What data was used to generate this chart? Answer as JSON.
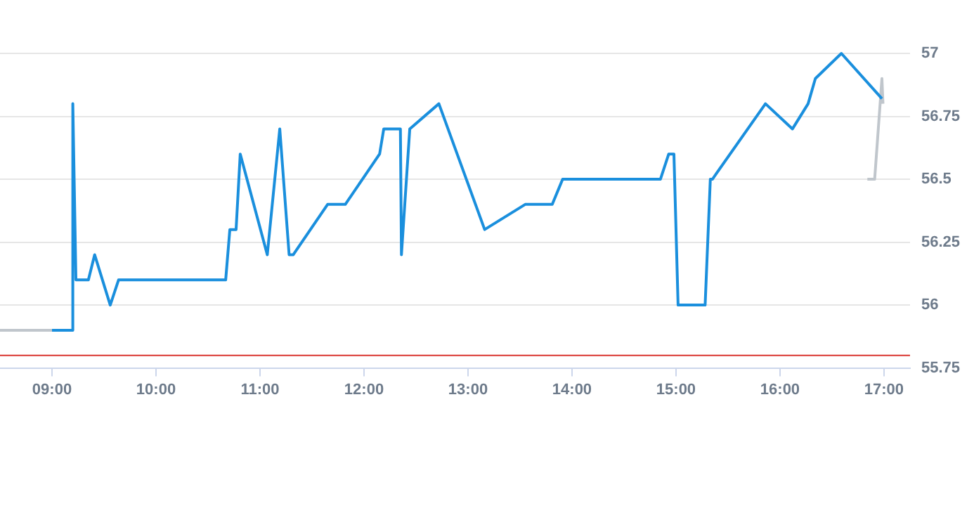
{
  "chart_data": {
    "type": "line",
    "xlim": [
      8.5,
      17.25
    ],
    "xticks": [
      {
        "value": 9,
        "label": "09:00"
      },
      {
        "value": 10,
        "label": "10:00"
      },
      {
        "value": 11,
        "label": "11:00"
      },
      {
        "value": 12,
        "label": "12:00"
      },
      {
        "value": 13,
        "label": "13:00"
      },
      {
        "value": 14,
        "label": "14:00"
      },
      {
        "value": 15,
        "label": "15:00"
      },
      {
        "value": 16,
        "label": "16:00"
      },
      {
        "value": 17,
        "label": "17:00"
      }
    ],
    "ylim": [
      55.75,
      57
    ],
    "yticks": [
      55.75,
      56,
      56.25,
      56.5,
      56.75,
      57
    ],
    "grid": "y",
    "marker": "none",
    "line_style": "solid",
    "series": [
      {
        "color": "#c0c6cc",
        "x": [
          8.5,
          9.0
        ],
        "values": [
          55.9,
          55.9
        ]
      },
      {
        "color": "#1a8fdd",
        "x": [
          9.0,
          9.2,
          9.2,
          9.23,
          9.35,
          9.41,
          9.56,
          9.64,
          10.67,
          10.71,
          10.77,
          10.81,
          11.07,
          11.19,
          11.28,
          11.32,
          11.65,
          11.82,
          12.15,
          12.19,
          12.35,
          12.36,
          12.44,
          12.72,
          13.16,
          13.55,
          13.81,
          13.91,
          14.85,
          14.93,
          14.98,
          15.02,
          15.28,
          15.33,
          15.35,
          15.86,
          16.12,
          16.27,
          16.34,
          16.59,
          16.98
        ],
        "values": [
          55.9,
          55.9,
          56.8,
          56.1,
          56.1,
          56.2,
          56.0,
          56.1,
          56.1,
          56.3,
          56.3,
          56.6,
          56.2,
          56.7,
          56.2,
          56.2,
          56.4,
          56.4,
          56.6,
          56.7,
          56.7,
          56.2,
          56.7,
          56.8,
          56.3,
          56.4,
          56.4,
          56.5,
          56.5,
          56.6,
          56.6,
          56.0,
          56.0,
          56.5,
          56.5,
          56.8,
          56.7,
          56.8,
          56.9,
          57.0,
          56.82
        ]
      },
      {
        "color": "#c0c6cc",
        "x": [
          16.84,
          16.91,
          16.98,
          16.99
        ],
        "values": [
          56.5,
          56.5,
          56.9,
          56.8
        ]
      }
    ],
    "ref_lines": [
      {
        "axis": "y",
        "value": 55.8,
        "color": "#d9352f"
      }
    ]
  }
}
